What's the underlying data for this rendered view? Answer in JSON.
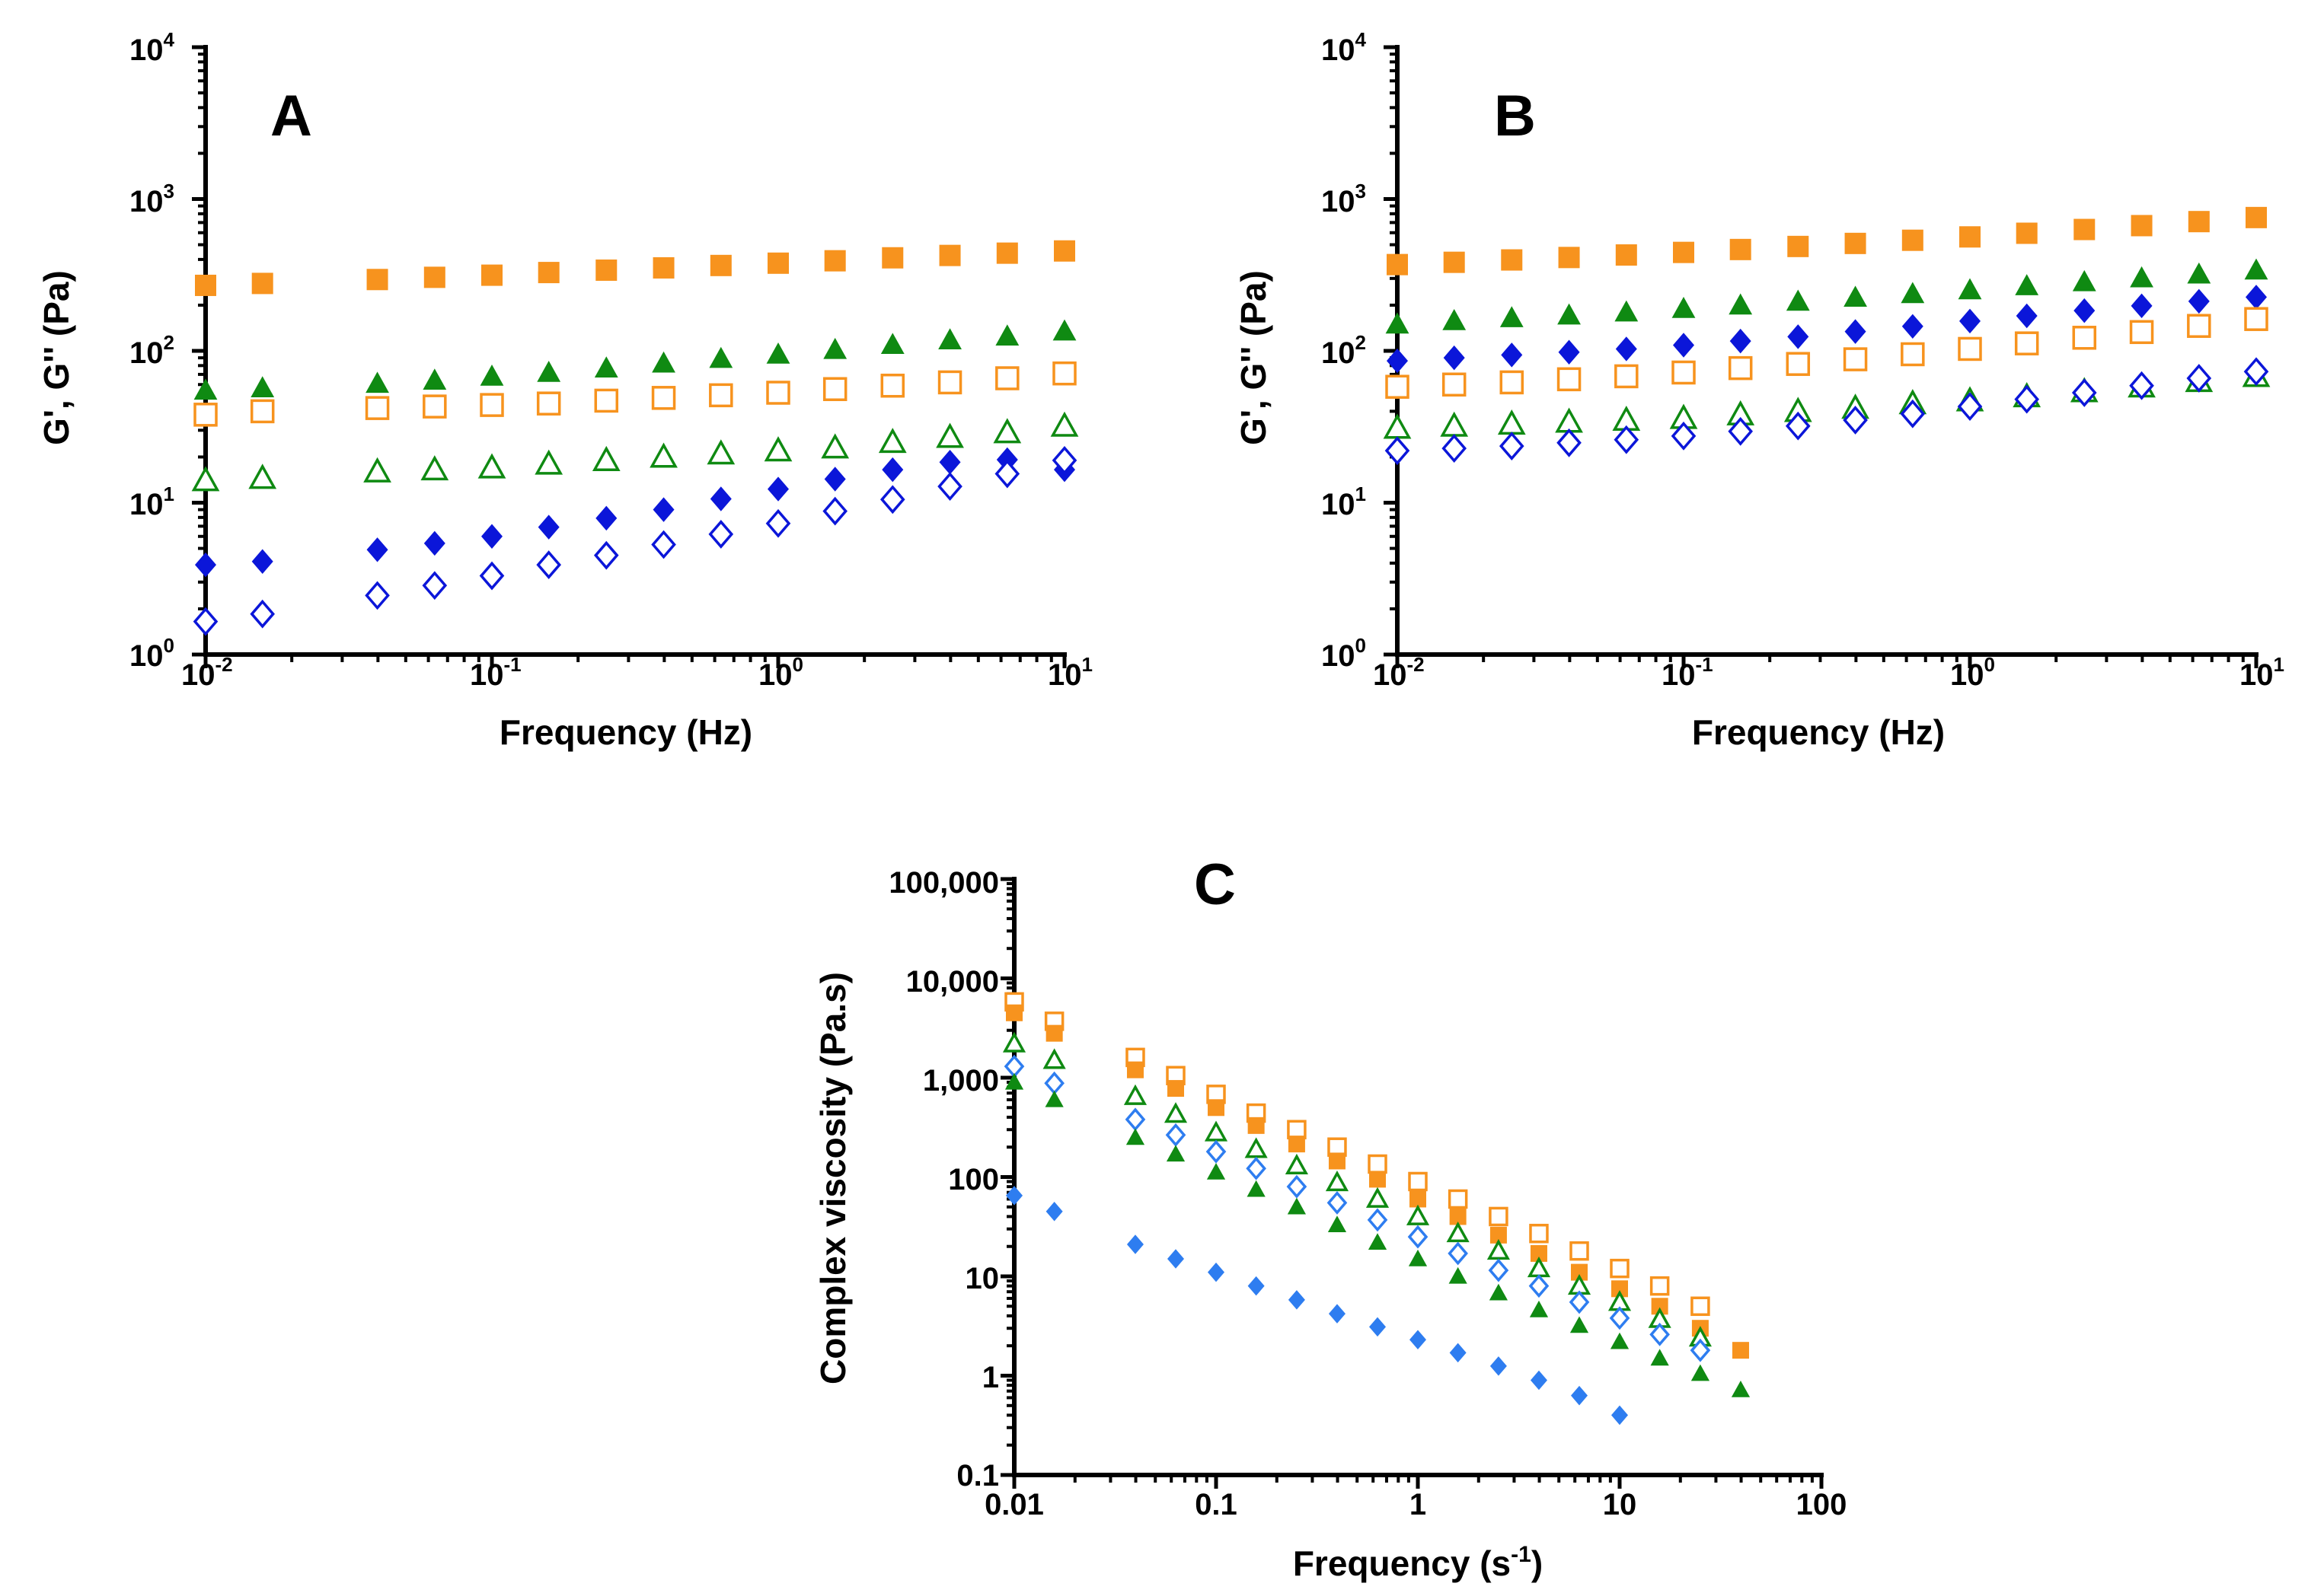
{
  "colors": {
    "orange": "#f7931e",
    "green": "#0f8a12",
    "navy": "#0b16d9",
    "lightblue": "#2e7df0"
  },
  "chart_data": [
    {
      "type": "scatter",
      "panel_label": "A",
      "xscale": "log",
      "yscale": "log",
      "xlabel": "Frequency (Hz)",
      "ylabel": "G', G'' (Pa)",
      "xlim": [
        0.01,
        10
      ],
      "ylim": [
        1,
        10000
      ],
      "x_ticks": [
        {
          "base": "10",
          "exp": "-2"
        },
        {
          "base": "10",
          "exp": "-1"
        },
        {
          "base": "10",
          "exp": "0"
        },
        {
          "base": "10",
          "exp": "1"
        }
      ],
      "y_ticks": [
        {
          "base": "10",
          "exp": "0"
        },
        {
          "base": "10",
          "exp": "1"
        },
        {
          "base": "10",
          "exp": "2"
        },
        {
          "base": "10",
          "exp": "3"
        },
        {
          "base": "10",
          "exp": "4"
        }
      ],
      "x": [
        0.01,
        0.0158,
        0.0398,
        0.0631,
        0.1,
        0.158,
        0.251,
        0.398,
        0.631,
        1.0,
        1.58,
        2.51,
        3.98,
        6.31,
        10.0
      ],
      "series": [
        {
          "name": "orange filled square",
          "marker": "square",
          "filled": true,
          "color": "orange",
          "values": [
            270,
            278,
            295,
            305,
            315,
            328,
            340,
            352,
            365,
            378,
            392,
            410,
            425,
            440,
            455
          ]
        },
        {
          "name": "orange open square",
          "marker": "square",
          "filled": false,
          "color": "orange",
          "values": [
            38,
            40,
            42,
            43,
            44,
            45,
            47,
            49,
            51,
            53,
            56,
            59,
            62,
            66,
            71
          ]
        },
        {
          "name": "green filled triangle",
          "marker": "triangle",
          "filled": true,
          "color": "green",
          "values": [
            55,
            57,
            61,
            64,
            68,
            72,
            77,
            83,
            89,
            95,
            102,
            110,
            118,
            125,
            135
          ]
        },
        {
          "name": "green open triangle",
          "marker": "triangle",
          "filled": false,
          "color": "green",
          "values": [
            14,
            14.5,
            16,
            16.5,
            17,
            18,
            19,
            20,
            21,
            22,
            23,
            25,
            27,
            29,
            32
          ]
        },
        {
          "name": "navy filled diamond",
          "marker": "diamond",
          "filled": true,
          "color": "navy",
          "values": [
            3.9,
            4.1,
            4.9,
            5.4,
            6.0,
            6.9,
            7.9,
            9.0,
            10.6,
            12.3,
            14.3,
            16.5,
            18.5,
            19.2,
            16.5
          ]
        },
        {
          "name": "navy open diamond",
          "marker": "diamond",
          "filled": false,
          "color": "navy",
          "values": [
            1.65,
            1.85,
            2.45,
            2.85,
            3.3,
            3.9,
            4.5,
            5.3,
            6.2,
            7.3,
            8.8,
            10.5,
            12.8,
            15.5,
            19.0
          ]
        }
      ]
    },
    {
      "type": "scatter",
      "panel_label": "B",
      "xscale": "log",
      "yscale": "log",
      "xlabel": "Frequency (Hz)",
      "ylabel": "G', G'' (Pa)",
      "xlim": [
        0.01,
        10
      ],
      "ylim": [
        1,
        10000
      ],
      "x_ticks": [
        {
          "base": "10",
          "exp": "-2"
        },
        {
          "base": "10",
          "exp": "-1"
        },
        {
          "base": "10",
          "exp": "0"
        },
        {
          "base": "10",
          "exp": "1"
        }
      ],
      "y_ticks": [
        {
          "base": "10",
          "exp": "0"
        },
        {
          "base": "10",
          "exp": "1"
        },
        {
          "base": "10",
          "exp": "2"
        },
        {
          "base": "10",
          "exp": "3"
        },
        {
          "base": "10",
          "exp": "4"
        }
      ],
      "x": [
        0.01,
        0.0158,
        0.0251,
        0.0398,
        0.0631,
        0.1,
        0.158,
        0.251,
        0.398,
        0.631,
        1.0,
        1.58,
        2.51,
        3.98,
        6.31,
        10.0
      ],
      "series": [
        {
          "name": "orange filled square",
          "marker": "square",
          "filled": true,
          "color": "orange",
          "values": [
            370,
            383,
            397,
            412,
            428,
            445,
            465,
            487,
            510,
            535,
            563,
            595,
            630,
            668,
            710,
            755
          ]
        },
        {
          "name": "green filled triangle",
          "marker": "triangle",
          "filled": true,
          "color": "green",
          "values": [
            150,
            158,
            165,
            172,
            180,
            190,
            200,
            212,
            225,
            238,
            252,
            268,
            285,
            302,
            320,
            340
          ]
        },
        {
          "name": "navy filled diamond",
          "marker": "diamond",
          "filled": true,
          "color": "navy",
          "values": [
            86,
            90,
            94,
            98,
            103,
            109,
            116,
            124,
            134,
            145,
            157,
            170,
            184,
            198,
            212,
            226
          ]
        },
        {
          "name": "orange open square",
          "marker": "square",
          "filled": false,
          "color": "orange",
          "values": [
            58,
            60,
            62,
            65,
            68,
            72,
            77,
            82,
            88,
            95,
            103,
            112,
            122,
            133,
            146,
            162
          ]
        },
        {
          "name": "green open triangle",
          "marker": "triangle",
          "filled": false,
          "color": "green",
          "values": [
            31,
            32,
            33,
            34,
            35,
            36,
            38,
            40,
            42,
            45,
            47,
            50,
            54,
            58,
            63,
            68
          ]
        },
        {
          "name": "navy open diamond",
          "marker": "diamond",
          "filled": false,
          "color": "navy",
          "values": [
            22,
            22.8,
            23.6,
            24.8,
            26,
            27.5,
            29.5,
            32,
            35,
            38.5,
            43,
            48,
            53,
            59,
            66,
            73
          ]
        }
      ]
    },
    {
      "type": "scatter",
      "panel_label": "C",
      "xscale": "log",
      "yscale": "log",
      "xlabel": "Frequency (s",
      "xlabel_sup": "-1",
      "xlabel_end": ")",
      "ylabel": "Complex viscosity (Pa.s)",
      "xlim": [
        0.01,
        100
      ],
      "ylim": [
        0.1,
        100000
      ],
      "x_ticks": [
        "0.01",
        "0.1",
        "1",
        "10",
        "100"
      ],
      "y_ticks": [
        "0.1",
        "1",
        "10",
        "100",
        "1,000",
        "10,000",
        "100,000"
      ],
      "x": [
        0.01,
        0.0158,
        0.0398,
        0.0631,
        0.1,
        0.158,
        0.251,
        0.398,
        0.631,
        1.0,
        1.58,
        2.51,
        3.98,
        6.31,
        10.0,
        15.8,
        25.1,
        39.8
      ],
      "series": [
        {
          "name": "orange open square",
          "marker": "square",
          "filled": false,
          "color": "orange",
          "values": [
            5800,
            3700,
            1600,
            1050,
            680,
            440,
            300,
            200,
            135,
            90,
            60,
            40,
            27,
            18,
            12,
            8,
            5,
            null
          ]
        },
        {
          "name": "orange filled square",
          "marker": "square",
          "filled": true,
          "color": "orange",
          "values": [
            4500,
            2800,
            1200,
            780,
            500,
            330,
            215,
            145,
            95,
            60,
            40,
            26,
            17,
            11,
            7.5,
            5,
            3,
            1.8
          ]
        },
        {
          "name": "green open triangle",
          "marker": "triangle",
          "filled": false,
          "color": "green",
          "values": [
            2200,
            1500,
            650,
            430,
            280,
            190,
            130,
            88,
            60,
            40,
            27,
            18,
            12,
            8,
            5.5,
            3.7,
            2.4,
            null
          ]
        },
        {
          "name": "lightblue open diamond",
          "marker": "diamond",
          "filled": false,
          "color": "lightblue",
          "values": [
            1300,
            880,
            380,
            265,
            180,
            122,
            80,
            55,
            37,
            25,
            17,
            11.5,
            8,
            5.5,
            3.8,
            2.6,
            1.8,
            null
          ]
        },
        {
          "name": "green filled triangle",
          "marker": "triangle",
          "filled": true,
          "color": "green",
          "values": [
            900,
            600,
            250,
            170,
            112,
            75,
            50,
            33,
            22,
            15,
            10,
            6.8,
            4.6,
            3.2,
            2.2,
            1.5,
            1.05,
            0.72
          ]
        },
        {
          "name": "lightblue filled diamond",
          "marker": "diamond",
          "filled": true,
          "color": "lightblue",
          "values": [
            65,
            45,
            21,
            15,
            11,
            8,
            5.8,
            4.2,
            3.1,
            2.3,
            1.7,
            1.25,
            0.9,
            0.63,
            0.4,
            null,
            null,
            null
          ]
        }
      ]
    }
  ]
}
